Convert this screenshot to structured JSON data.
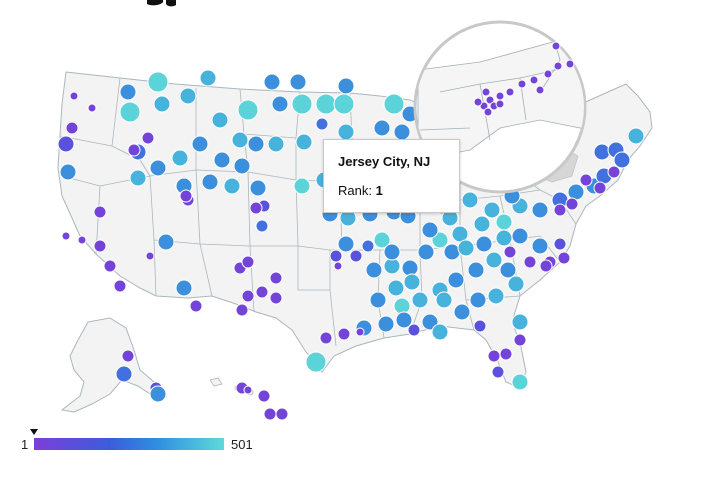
{
  "tooltip": {
    "city": "Jersey City, NJ",
    "rank_label": "Rank: ",
    "rank_value": "1"
  },
  "legend": {
    "min": "1",
    "max": "501",
    "color_low": "#7b3fd9",
    "color_mid": "#2f8fe0",
    "color_high": "#5fd9d9",
    "current_rank": 1
  },
  "map": {
    "land_color": "#f3f3f3",
    "border_color": "#9fb0b8",
    "highlight_city": "Jersey City, NJ",
    "inset": "new-york-metro-zoom"
  }
}
